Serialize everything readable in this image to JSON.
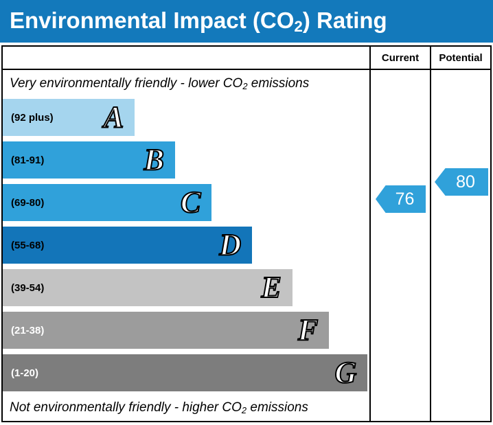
{
  "title": {
    "prefix": "Environmental Impact (CO",
    "sub": "2",
    "suffix": ") Rating"
  },
  "header": {
    "current": "Current",
    "potential": "Potential"
  },
  "captions": {
    "top": {
      "prefix": "Very environmentally friendly - lower CO",
      "sub": "2",
      "suffix": " emissions"
    },
    "bottom": {
      "prefix": "Not environmentally friendly - higher CO",
      "sub": "2",
      "suffix": " emissions"
    }
  },
  "colors": {
    "title_bar_bg": "#1379bb",
    "border": "#000000",
    "arrow_blue": "#30a1da"
  },
  "chart_data": {
    "type": "bar",
    "chart_kind": "epc-environmental-impact-co2-rating",
    "bands": [
      {
        "letter": "A",
        "range": "(92 plus)",
        "width_pct": 36,
        "color": "#a5d5ee",
        "label_color": "#000000"
      },
      {
        "letter": "B",
        "range": "(81-91)",
        "width_pct": 47,
        "color": "#30a1da",
        "label_color": "#000000"
      },
      {
        "letter": "C",
        "range": "(69-80)",
        "width_pct": 57,
        "color": "#30a1da",
        "label_color": "#000000"
      },
      {
        "letter": "D",
        "range": "(55-68)",
        "width_pct": 68,
        "color": "#1375b9",
        "label_color": "#000000"
      },
      {
        "letter": "E",
        "range": "(39-54)",
        "width_pct": 79,
        "color": "#c3c3c3",
        "label_color": "#000000"
      },
      {
        "letter": "F",
        "range": "(21-38)",
        "width_pct": 89,
        "color": "#9c9c9c",
        "label_color": "#ffffff"
      },
      {
        "letter": "G",
        "range": "(1-20)",
        "width_pct": 99.5,
        "color": "#7d7d7d",
        "label_color": "#ffffff"
      }
    ],
    "current": {
      "value": 76,
      "band": "C",
      "color": "#30a1da"
    },
    "potential": {
      "value": 80,
      "band": "C",
      "color": "#30a1da"
    }
  }
}
